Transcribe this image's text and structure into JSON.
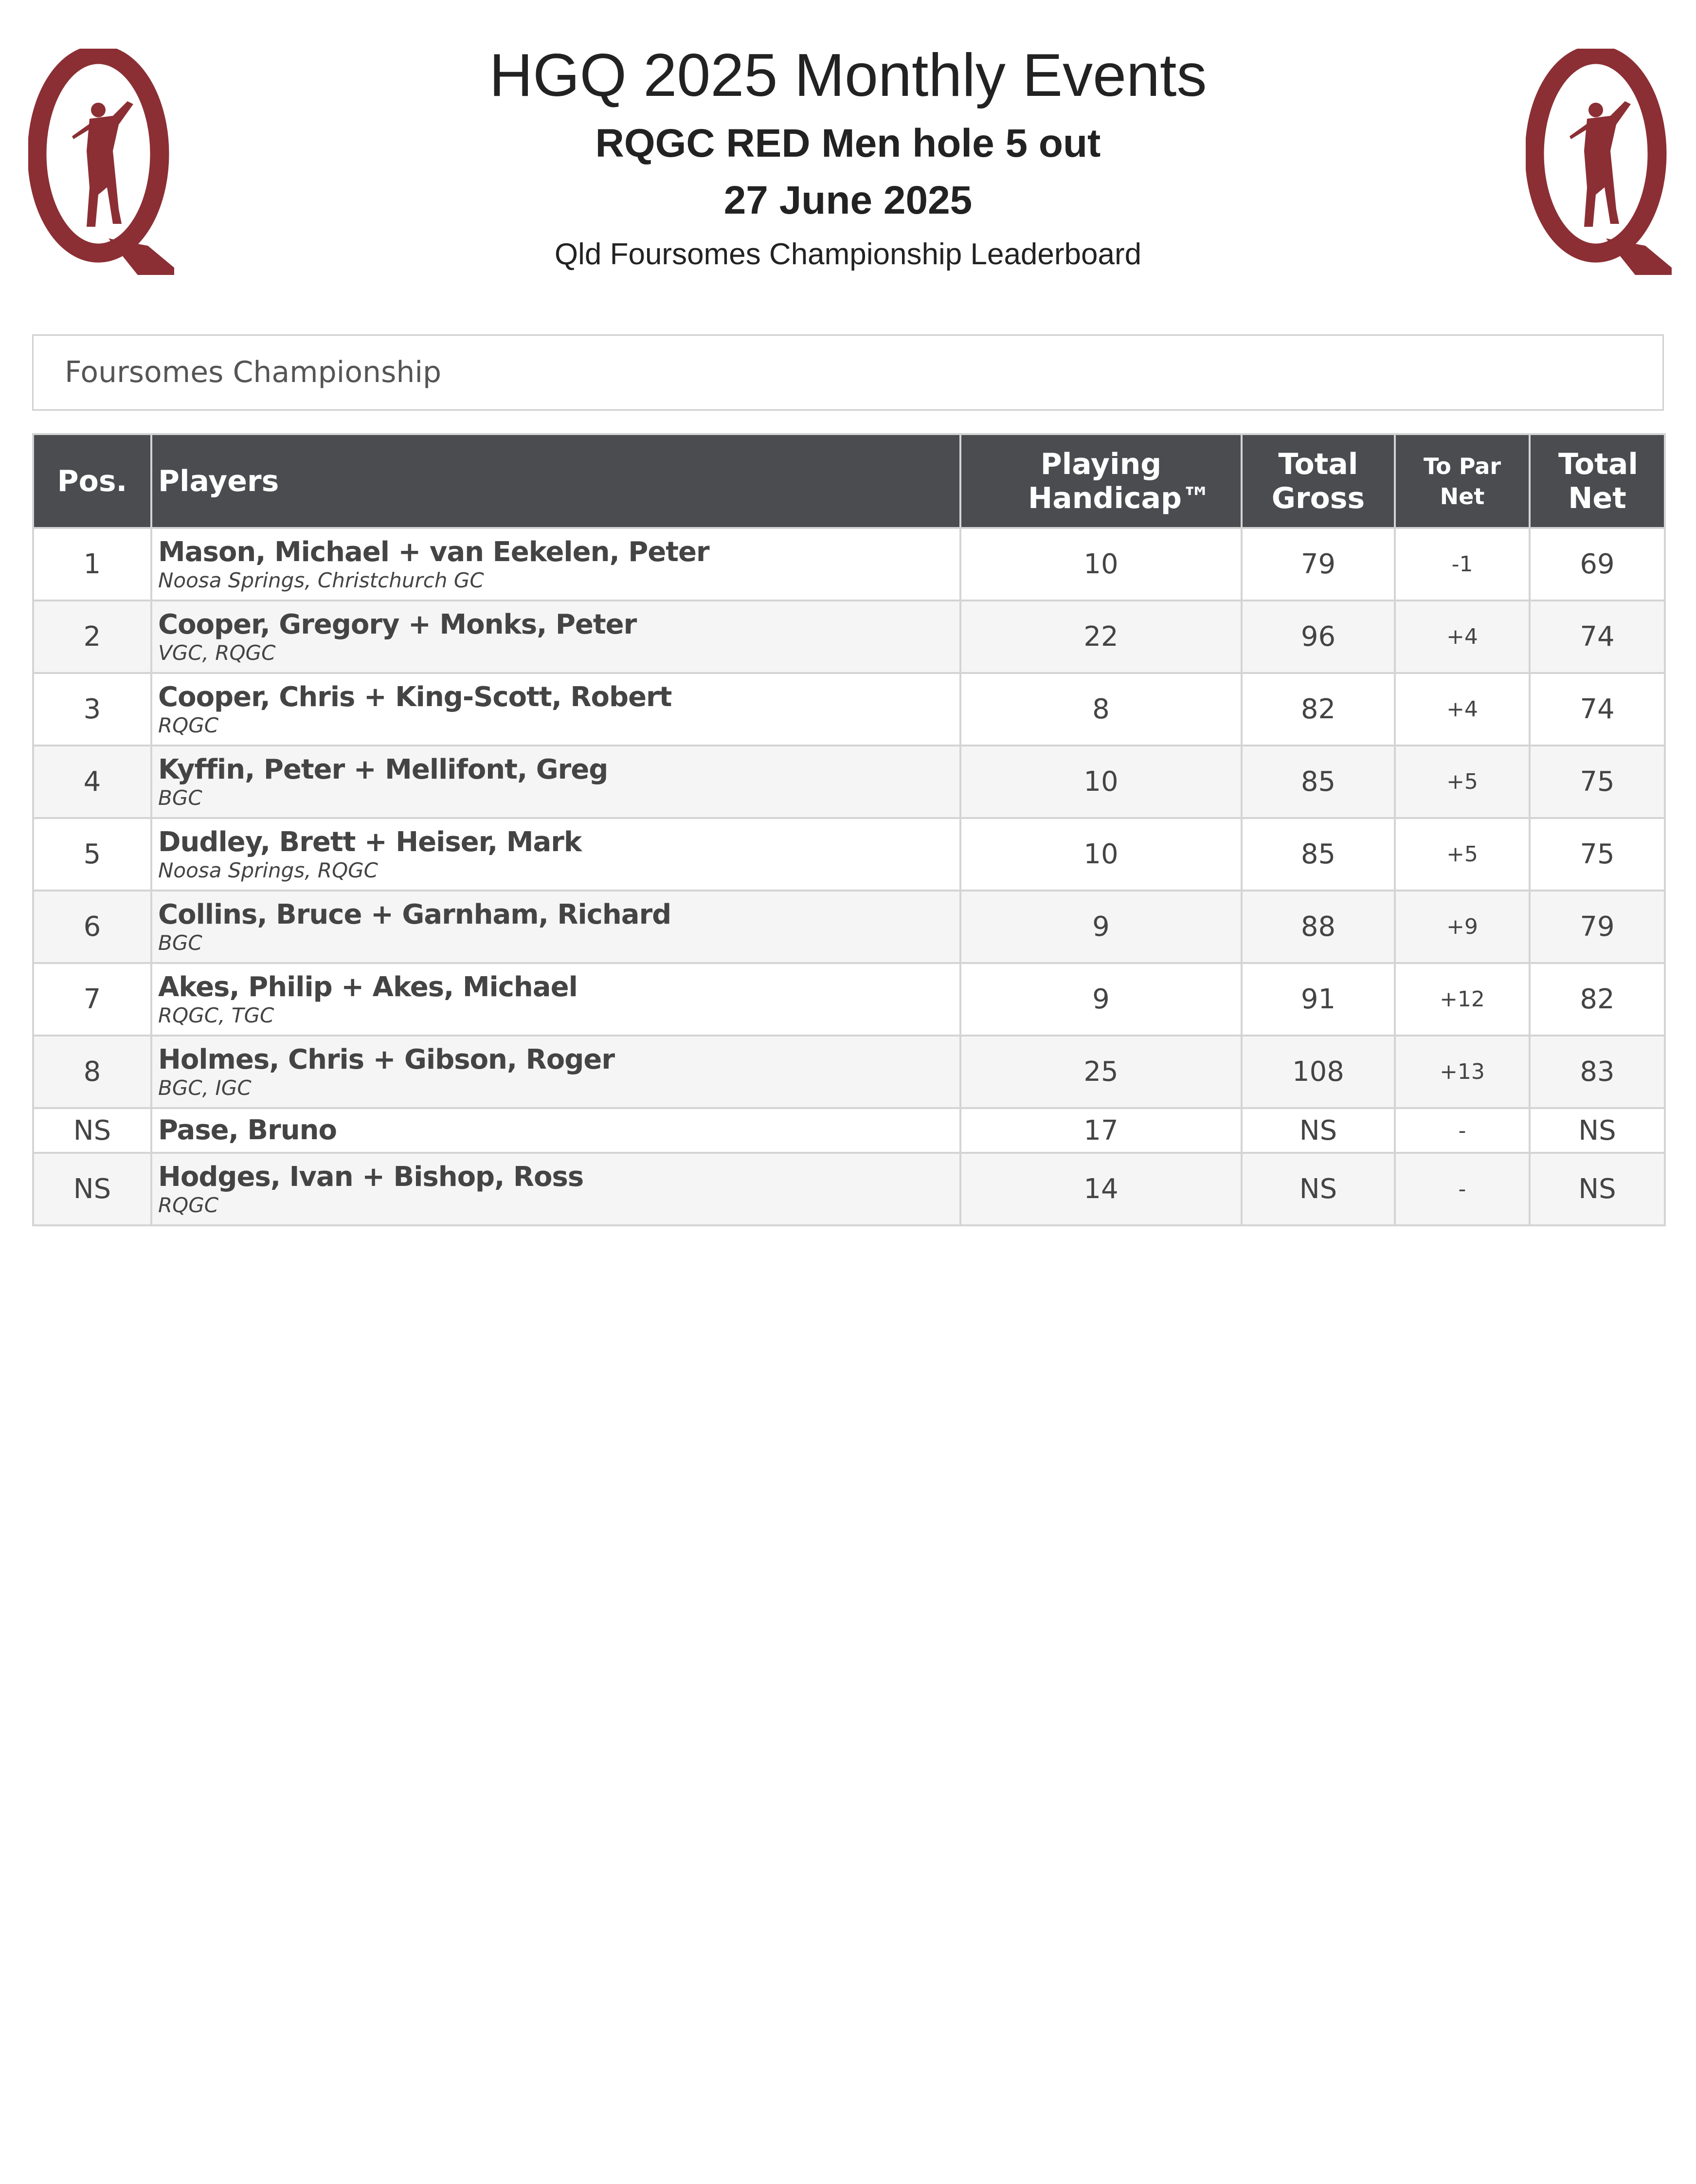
{
  "header": {
    "title": "HGQ 2025 Monthly Events",
    "subtitle": "RQGC RED Men hole 5 out",
    "date": "27 June 2025",
    "description": "Qld Foursomes Championship Leaderboard",
    "logo_letter": "Q",
    "logo_color": "#8b2f34"
  },
  "section": {
    "title": "Foursomes Championship"
  },
  "table": {
    "columns": [
      "Pos.",
      "Players",
      "Playing Handicap™",
      "Total Gross",
      "To Par Net",
      "Total Net"
    ],
    "header_bg": "#4a4c50",
    "rows": [
      {
        "pos": "1",
        "players": "Mason, Michael + van Eekelen, Peter",
        "clubs": "Noosa Springs, Christchurch GC",
        "handicap": "10",
        "gross": "79",
        "to_par": "-1",
        "net": "69"
      },
      {
        "pos": "2",
        "players": "Cooper, Gregory + Monks, Peter",
        "clubs": "VGC, RQGC",
        "handicap": "22",
        "gross": "96",
        "to_par": "+4",
        "net": "74"
      },
      {
        "pos": "3",
        "players": "Cooper, Chris + King-Scott, Robert",
        "clubs": "RQGC",
        "handicap": "8",
        "gross": "82",
        "to_par": "+4",
        "net": "74"
      },
      {
        "pos": "4",
        "players": "Kyffin, Peter + Mellifont, Greg",
        "clubs": "BGC",
        "handicap": "10",
        "gross": "85",
        "to_par": "+5",
        "net": "75"
      },
      {
        "pos": "5",
        "players": "Dudley, Brett + Heiser, Mark",
        "clubs": "Noosa Springs, RQGC",
        "handicap": "10",
        "gross": "85",
        "to_par": "+5",
        "net": "75"
      },
      {
        "pos": "6",
        "players": "Collins, Bruce + Garnham, Richard",
        "clubs": "BGC",
        "handicap": "9",
        "gross": "88",
        "to_par": "+9",
        "net": "79"
      },
      {
        "pos": "7",
        "players": "Akes, Philip + Akes, Michael",
        "clubs": "RQGC, TGC",
        "handicap": "9",
        "gross": "91",
        "to_par": "+12",
        "net": "82"
      },
      {
        "pos": "8",
        "players": "Holmes, Chris + Gibson, Roger",
        "clubs": "BGC, IGC",
        "handicap": "25",
        "gross": "108",
        "to_par": "+13",
        "net": "83"
      },
      {
        "pos": "NS",
        "players": "Pase, Bruno",
        "clubs": "",
        "handicap": "17",
        "gross": "NS",
        "to_par": "-",
        "net": "NS"
      },
      {
        "pos": "NS",
        "players": "Hodges, Ivan + Bishop, Ross",
        "clubs": "RQGC",
        "handicap": "14",
        "gross": "NS",
        "to_par": "-",
        "net": "NS"
      }
    ]
  }
}
